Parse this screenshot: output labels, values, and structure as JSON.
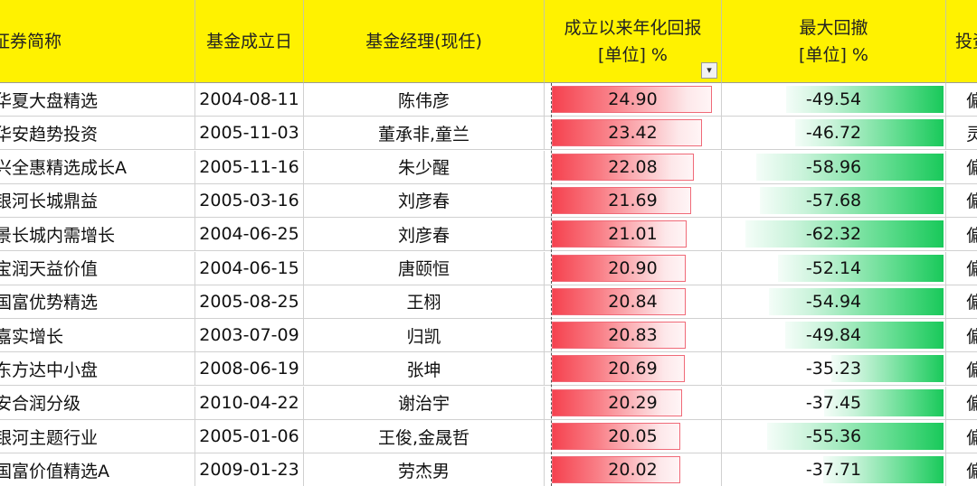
{
  "headers": {
    "name": "证券简称",
    "date": "基金成立日",
    "manager": "基金经理(现任)",
    "annual_line1": "成立以来年化回报",
    "annual_line2": "[单位] %",
    "drawdown_line1": "最大回撤",
    "drawdown_line2": "[单位] %",
    "invest": "投资"
  },
  "filter_icon": "filter-icon",
  "rows": [
    {
      "name": "华夏大盘精选",
      "date": "2004-08-11",
      "manager": "陈伟彦",
      "annual": "24.90",
      "drawdown": "-49.54",
      "invest": "偏",
      "annual_v": 24.9,
      "drawdown_v": -49.54
    },
    {
      "name": "华安趋势投资",
      "date": "2005-11-03",
      "manager": "董承非,童兰",
      "annual": "23.42",
      "drawdown": "-46.72",
      "invest": "灵",
      "annual_v": 23.42,
      "drawdown_v": -46.72
    },
    {
      "name": "兴全惠精选成长A",
      "date": "2005-11-16",
      "manager": "朱少醒",
      "annual": "22.08",
      "drawdown": "-58.96",
      "invest": "偏",
      "annual_v": 22.08,
      "drawdown_v": -58.96
    },
    {
      "name": "银河长城鼎益",
      "date": "2005-03-16",
      "manager": "刘彦春",
      "annual": "21.69",
      "drawdown": "-57.68",
      "invest": "偏",
      "annual_v": 21.69,
      "drawdown_v": -57.68
    },
    {
      "name": "景长城内需增长",
      "date": "2004-06-25",
      "manager": "刘彦春",
      "annual": "21.01",
      "drawdown": "-62.32",
      "invest": "偏",
      "annual_v": 21.01,
      "drawdown_v": -62.32
    },
    {
      "name": "宝润天益价值",
      "date": "2004-06-15",
      "manager": "唐颐恒",
      "annual": "20.90",
      "drawdown": "-52.14",
      "invest": "偏",
      "annual_v": 20.9,
      "drawdown_v": -52.14
    },
    {
      "name": "国富优势精选",
      "date": "2005-08-25",
      "manager": "王栩",
      "annual": "20.84",
      "drawdown": "-54.94",
      "invest": "偏",
      "annual_v": 20.84,
      "drawdown_v": -54.94
    },
    {
      "name": "嘉实增长",
      "date": "2003-07-09",
      "manager": "归凯",
      "annual": "20.83",
      "drawdown": "-49.84",
      "invest": "偏",
      "annual_v": 20.83,
      "drawdown_v": -49.84
    },
    {
      "name": "东方达中小盘",
      "date": "2008-06-19",
      "manager": "张坤",
      "annual": "20.69",
      "drawdown": "-35.23",
      "invest": "偏",
      "annual_v": 20.69,
      "drawdown_v": -35.23
    },
    {
      "name": "安合润分级",
      "date": "2010-04-22",
      "manager": "谢治宇",
      "annual": "20.29",
      "drawdown": "-37.45",
      "invest": "偏",
      "annual_v": 20.29,
      "drawdown_v": -37.45
    },
    {
      "name": "银河主题行业",
      "date": "2005-01-06",
      "manager": "王俊,金晟哲",
      "annual": "20.05",
      "drawdown": "-55.36",
      "invest": "偏",
      "annual_v": 20.05,
      "drawdown_v": -55.36
    },
    {
      "name": "国富价值精选A",
      "date": "2009-01-23",
      "manager": "劳杰男",
      "annual": "20.02",
      "drawdown": "-37.71",
      "invest": "偏",
      "annual_v": 20.02,
      "drawdown_v": -37.71
    }
  ],
  "colors": {
    "header_bg": "#fff200",
    "red_bar": "#f5424f",
    "green_bar": "#19c95a"
  }
}
